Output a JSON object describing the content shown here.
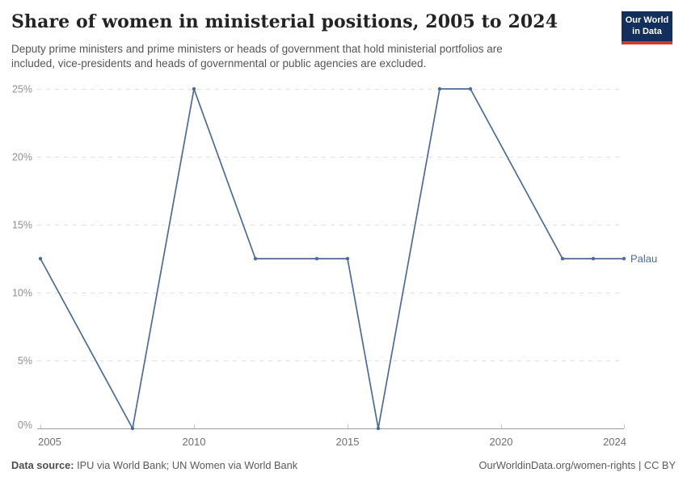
{
  "header": {
    "title": "Share of women in ministerial positions, 2005 to 2024",
    "subtitle": "Deputy prime ministers and prime ministers or heads of government that hold ministerial portfolios are included, vice-presidents and heads of governmental or public agencies are excluded.",
    "logo": {
      "line1": "Our World",
      "line2": "in Data",
      "bg_color": "#12305b",
      "accent_color": "#d23a2e"
    }
  },
  "footer": {
    "datasource_label": "Data source:",
    "datasource_text": " IPU via World Bank; UN Women via World Bank",
    "link_text": "OurWorldinData.org/women-rights | CC BY"
  },
  "chart_data": {
    "type": "line",
    "title": "Share of women in ministerial positions, 2005 to 2024",
    "xlim": [
      2005,
      2024
    ],
    "ylim": [
      0,
      25
    ],
    "x_ticks": [
      2005,
      2010,
      2015,
      2020,
      2024
    ],
    "y_ticks": [
      0,
      5,
      10,
      15,
      20,
      25
    ],
    "y_tick_suffix": "%",
    "grid": "horizontal-dashed",
    "legend_position": "end-of-line-label",
    "series": [
      {
        "name": "Palau",
        "color": "#4C6A9C",
        "points": [
          [
            2005,
            12.5
          ],
          [
            2008,
            0
          ],
          [
            2010,
            25
          ],
          [
            2012,
            12.5
          ],
          [
            2014,
            12.5
          ],
          [
            2015,
            12.5
          ],
          [
            2016,
            0
          ],
          [
            2018,
            25
          ],
          [
            2019,
            25
          ],
          [
            2022,
            12.5
          ],
          [
            2023,
            12.5
          ],
          [
            2024,
            12.5
          ]
        ]
      }
    ],
    "axis_colors": {
      "gridline": "#e0e0e0",
      "baseline": "#9e9e9e",
      "tick": "#c6c6c6",
      "y_label": "#8f8f8f",
      "x_label": "#6f6f6f"
    }
  }
}
